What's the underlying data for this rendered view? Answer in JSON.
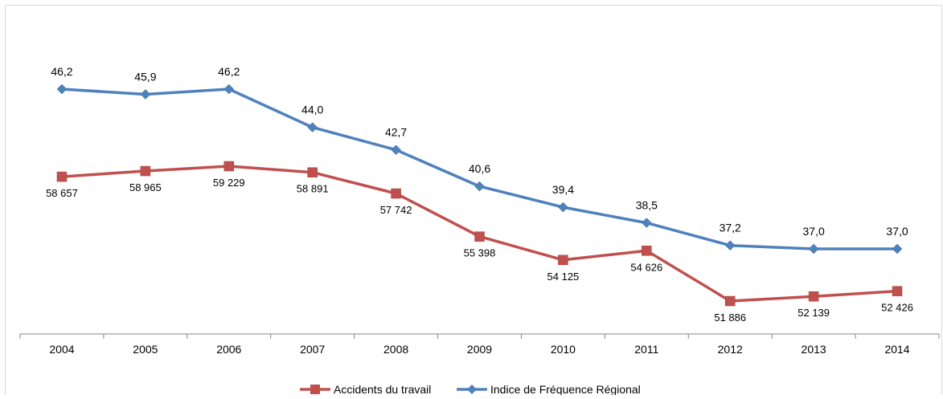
{
  "chart_data": {
    "type": "line",
    "title": "",
    "xlabel": "",
    "ylabel": "",
    "categories": [
      "2004",
      "2005",
      "2006",
      "2007",
      "2008",
      "2009",
      "2010",
      "2011",
      "2012",
      "2013",
      "2014"
    ],
    "series": [
      {
        "name": "Accidents du travail",
        "color": "#c0504d",
        "marker": "square",
        "values": [
          58657,
          58965,
          59229,
          58891,
          57742,
          55398,
          54125,
          54626,
          51886,
          52139,
          52426
        ],
        "labels": [
          "58 657",
          "58 965",
          "59 229",
          "58 891",
          "57 742",
          "55 398",
          "54 125",
          "54 626",
          "51 886",
          "52 139",
          "52 426"
        ],
        "label_position": "below"
      },
      {
        "name": "Indice de Fréquence Régional",
        "color": "#4f81bd",
        "marker": "diamond",
        "values": [
          46.2,
          45.9,
          46.2,
          44.0,
          42.7,
          40.6,
          39.4,
          38.5,
          37.2,
          37.0,
          37.0
        ],
        "labels": [
          "46,2",
          "45,9",
          "46,2",
          "44,0",
          "42,7",
          "40,6",
          "39,4",
          "38,5",
          "37,2",
          "37,0",
          "37,0"
        ],
        "label_position": "above"
      }
    ],
    "legend": {
      "position": "bottom",
      "items": [
        "Accidents du travail",
        "Indice de Fréquence Régional"
      ]
    },
    "y_axis_visible": false,
    "grid": false
  }
}
